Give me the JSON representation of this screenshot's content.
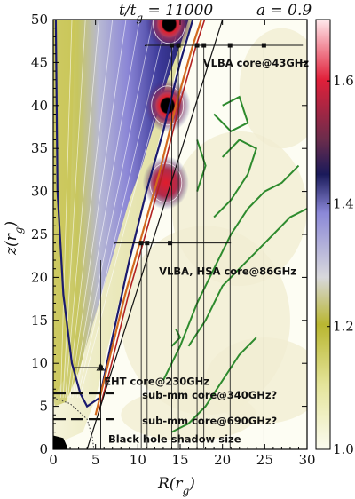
{
  "chart_data": {
    "type": "heatmap",
    "title_left": "t/t_g = 11000",
    "title_right": "a = 0.9",
    "xlabel": "R(r_g)",
    "ylabel": "z(r_g)",
    "xlim": [
      0,
      30
    ],
    "ylim": [
      0,
      50
    ],
    "xticks": [
      0,
      5,
      10,
      15,
      20,
      25,
      30
    ],
    "yticks": [
      0,
      5,
      10,
      15,
      20,
      25,
      30,
      35,
      40,
      45,
      50
    ],
    "colorbar": {
      "range": [
        1.0,
        1.7
      ],
      "ticks": [
        1.0,
        1.2,
        1.4,
        1.6
      ],
      "tick_labels": [
        "1.0",
        "1.2",
        "1.4",
        "1.6"
      ]
    },
    "annotations": [
      {
        "text": "VLBA core@43GHz",
        "x": 17.7,
        "y": 44.5
      },
      {
        "text": "VLBA, HSA core@86GHz",
        "x": 12.5,
        "y": 20.3
      },
      {
        "text": "EHT core@230GHz",
        "x": 6.0,
        "y": 7.5
      },
      {
        "text": "sub-mm core@340GHz?",
        "x": 10.5,
        "y": 5.9
      },
      {
        "text": "sub-mm core@690GHz?",
        "x": 10.5,
        "y": 2.9
      },
      {
        "text": "Black hole shadow size",
        "x": 6.5,
        "y": 0.8
      }
    ],
    "core_lines": [
      {
        "name": "43GHz",
        "y": 47.0,
        "xs": [
          14.0,
          14.8,
          17.0,
          17.8,
          20.9,
          24.9
        ]
      },
      {
        "name": "86GHz",
        "y": 24.0,
        "xs": [
          10.4,
          11.1,
          13.8
        ]
      },
      {
        "name": "230GHz",
        "y": 9.5,
        "xs": [
          5.6
        ]
      },
      {
        "name": "340GHz",
        "y": 6.5,
        "xs": [
          0.0,
          7.0
        ]
      },
      {
        "name": "690GHz",
        "y": 3.5,
        "xs": [
          0.0,
          7.0
        ]
      }
    ],
    "hot_spots": [
      {
        "x": 13.7,
        "y": 49.5
      },
      {
        "x": 13.5,
        "y": 40.0
      },
      {
        "x": 13.3,
        "y": 31.0
      }
    ]
  }
}
